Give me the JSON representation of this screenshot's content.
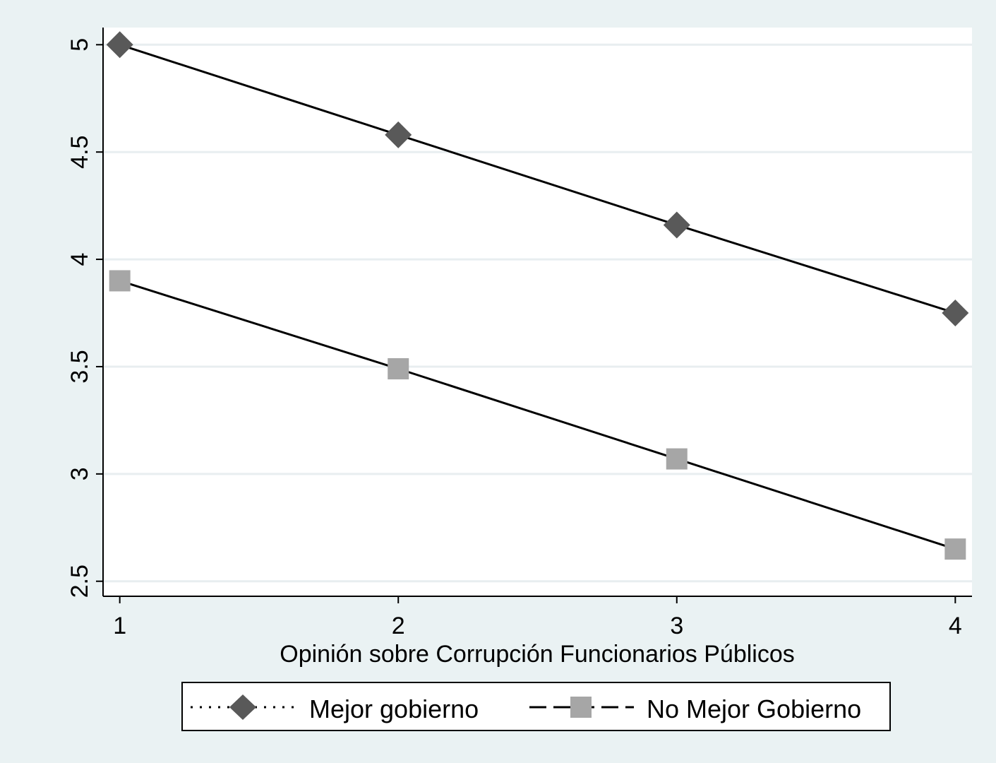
{
  "chart_data": {
    "type": "line",
    "title": "",
    "xlabel": "Opinión sobre Corrupción Funcionarios Públicos",
    "ylabel": "",
    "x": [
      1,
      2,
      3,
      4
    ],
    "xticks": [
      "1",
      "2",
      "3",
      "4"
    ],
    "xlim": [
      0.94,
      4.06
    ],
    "yticks": [
      "2.5",
      "3",
      "3.5",
      "4",
      "4.5",
      "5"
    ],
    "ylim": [
      2.43,
      5.08
    ],
    "grid": true,
    "legend_position": "bottom",
    "series": [
      {
        "name": "Mejor gobierno",
        "values": [
          5.0,
          4.58,
          4.16,
          3.75
        ],
        "marker": "diamond",
        "line": "dotted",
        "color": "#595959"
      },
      {
        "name": "No Mejor Gobierno",
        "values": [
          3.9,
          3.49,
          3.07,
          2.65
        ],
        "marker": "square",
        "line": "dashed",
        "color": "#a6a6a6"
      }
    ]
  },
  "colors": {
    "background": "#eaf2f3",
    "plot_background": "#ffffff",
    "gridline": "#e8eef0",
    "line": "#000000"
  }
}
